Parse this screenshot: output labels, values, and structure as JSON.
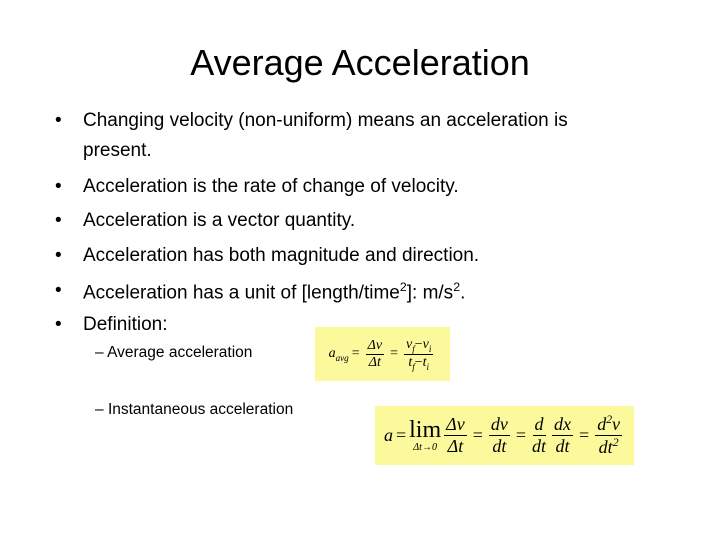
{
  "slide": {
    "title": "Average Acceleration",
    "bullets": [
      {
        "segments": [
          {
            "text": "Changing velocity (non-uniform) means an acceleration is"
          }
        ],
        "continuation": "present."
      },
      {
        "segments": [
          {
            "text": "Acceleration is the rate of change of velocity."
          }
        ]
      },
      {
        "segments": [
          {
            "text": "Acceleration is a vector quantity."
          }
        ]
      },
      {
        "segments": [
          {
            "text": "Acceleration has both magnitude and direction."
          }
        ]
      },
      {
        "segments": [
          {
            "text": "Acceleration has a unit of [length/time"
          },
          {
            "text": "2",
            "style": "sup"
          },
          {
            "text": "]: m/s"
          },
          {
            "text": "2",
            "style": "sup"
          },
          {
            "text": "."
          }
        ]
      },
      {
        "segments": [
          {
            "text": "Definition:"
          }
        ]
      }
    ],
    "bullet_symbol": "•",
    "sub_symbol": "–",
    "definitions": [
      {
        "label": "Average acceleration",
        "formula": {
          "lhs": "a",
          "lhs_sub": "avg",
          "eq1": "=",
          "num1": "Δv",
          "den1": "Δt",
          "eq2": "=",
          "num2": [
            "v",
            "f",
            "−",
            "v",
            "i"
          ],
          "den2": [
            "t",
            "f",
            "−",
            "t",
            "i"
          ]
        }
      },
      {
        "label": "Instantaneous acceleration",
        "formula": {
          "lhs": "a",
          "eq1": "=",
          "lim": "lim",
          "lim_sub": "Δt→0",
          "num1": "Δv",
          "den1": "Δt",
          "eq2": "=",
          "num2": "dv",
          "den2": "dt",
          "eq3": "=",
          "num3a": "d",
          "den3a": "dt",
          "num3b": "dx",
          "den3b": "dt",
          "eq4": "=",
          "num4": [
            "d",
            "2",
            "v"
          ],
          "den4": [
            "dt",
            "2"
          ]
        }
      }
    ]
  }
}
